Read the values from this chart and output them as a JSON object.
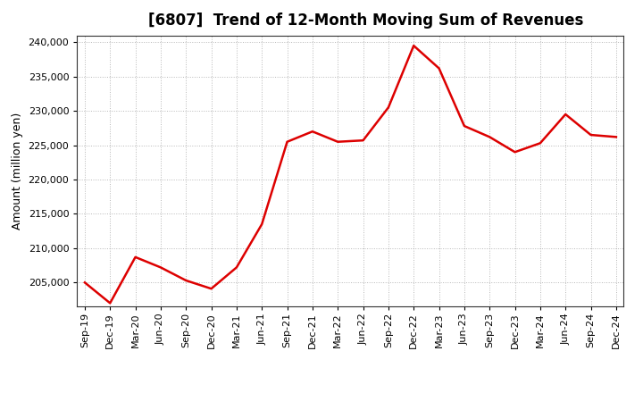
{
  "title": "[6807]  Trend of 12-Month Moving Sum of Revenues",
  "ylabel": "Amount (million yen)",
  "line_color": "#DD0000",
  "line_width": 1.8,
  "background_color": "#FFFFFF",
  "plot_bg_color": "#FFFFFF",
  "grid_color": "#999999",
  "ylim": [
    201500,
    241000
  ],
  "yticks": [
    205000,
    210000,
    215000,
    220000,
    225000,
    230000,
    235000,
    240000
  ],
  "x_labels": [
    "Sep-19",
    "Dec-19",
    "Mar-20",
    "Jun-20",
    "Sep-20",
    "Dec-20",
    "Mar-21",
    "Jun-21",
    "Sep-21",
    "Dec-21",
    "Mar-22",
    "Jun-22",
    "Sep-22",
    "Dec-22",
    "Mar-23",
    "Jun-23",
    "Sep-23",
    "Dec-23",
    "Mar-24",
    "Jun-24",
    "Sep-24",
    "Dec-24"
  ],
  "values": [
    205000,
    202000,
    208700,
    207200,
    205300,
    204100,
    207200,
    213500,
    225500,
    227000,
    225500,
    225700,
    230500,
    239500,
    236200,
    227800,
    226200,
    224000,
    225300,
    229500,
    226500,
    226200
  ],
  "title_fontsize": 12,
  "ylabel_fontsize": 9,
  "tick_fontsize": 8
}
